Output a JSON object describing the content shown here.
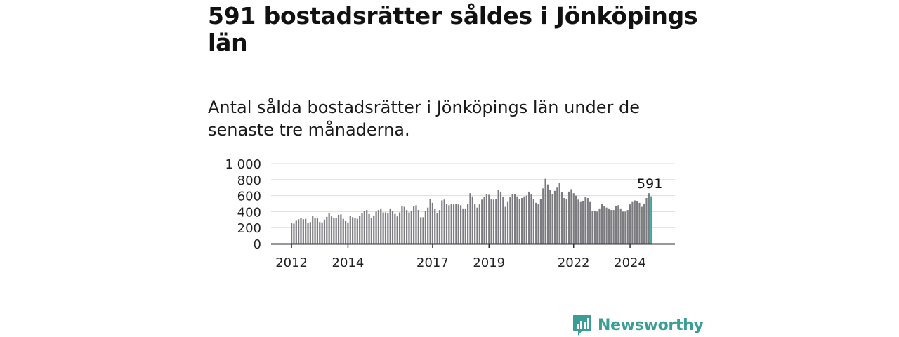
{
  "header": {
    "title": "591 bostadsrätter såldes i Jönköpings län",
    "subtitle": "Antal sålda bostadsrätter i Jönköpings län under de senaste tre månaderna."
  },
  "brand": {
    "name": "Newsworthy",
    "icon": "newsworthy-logo-icon"
  },
  "colors": {
    "bar": "#7b7b80",
    "highlight": "#3aa69e",
    "grid": "#dddddd",
    "axis": "#333333",
    "brand": "#3a9e97"
  },
  "chart_data": {
    "type": "bar",
    "y_ticks": [
      "0",
      "200",
      "400",
      "600",
      "800",
      "1 000"
    ],
    "y_tick_values": [
      0,
      200,
      400,
      600,
      800,
      1000
    ],
    "ylim": [
      0,
      1000
    ],
    "x_ticks": [
      {
        "label": "2012",
        "month": "2012-01"
      },
      {
        "label": "2014",
        "month": "2014-01"
      },
      {
        "label": "2017",
        "month": "2017-01"
      },
      {
        "label": "2019",
        "month": "2019-01"
      },
      {
        "label": "2022",
        "month": "2022-01"
      },
      {
        "label": "2024",
        "month": "2024-01"
      }
    ],
    "start_month": "2012-01",
    "values": [
      255,
      250,
      285,
      305,
      320,
      305,
      310,
      260,
      270,
      345,
      320,
      315,
      270,
      265,
      300,
      335,
      380,
      340,
      320,
      320,
      360,
      365,
      310,
      280,
      265,
      345,
      330,
      320,
      310,
      350,
      380,
      410,
      420,
      370,
      320,
      350,
      400,
      420,
      440,
      390,
      390,
      380,
      440,
      410,
      370,
      340,
      390,
      470,
      460,
      420,
      390,
      410,
      470,
      480,
      420,
      330,
      330,
      410,
      450,
      560,
      510,
      430,
      380,
      420,
      540,
      550,
      500,
      480,
      500,
      490,
      500,
      490,
      480,
      440,
      440,
      500,
      630,
      590,
      490,
      450,
      490,
      550,
      580,
      620,
      610,
      560,
      550,
      560,
      670,
      650,
      580,
      460,
      520,
      580,
      620,
      620,
      590,
      560,
      570,
      590,
      600,
      650,
      620,
      560,
      510,
      490,
      560,
      690,
      810,
      740,
      670,
      620,
      660,
      700,
      760,
      640,
      570,
      560,
      650,
      680,
      630,
      600,
      550,
      520,
      530,
      580,
      570,
      520,
      410,
      410,
      400,
      440,
      500,
      470,
      450,
      440,
      420,
      420,
      470,
      480,
      440,
      400,
      400,
      420,
      490,
      520,
      540,
      530,
      510,
      460,
      500,
      570,
      630,
      591
    ],
    "highlight_last": true,
    "last_label": "591"
  }
}
